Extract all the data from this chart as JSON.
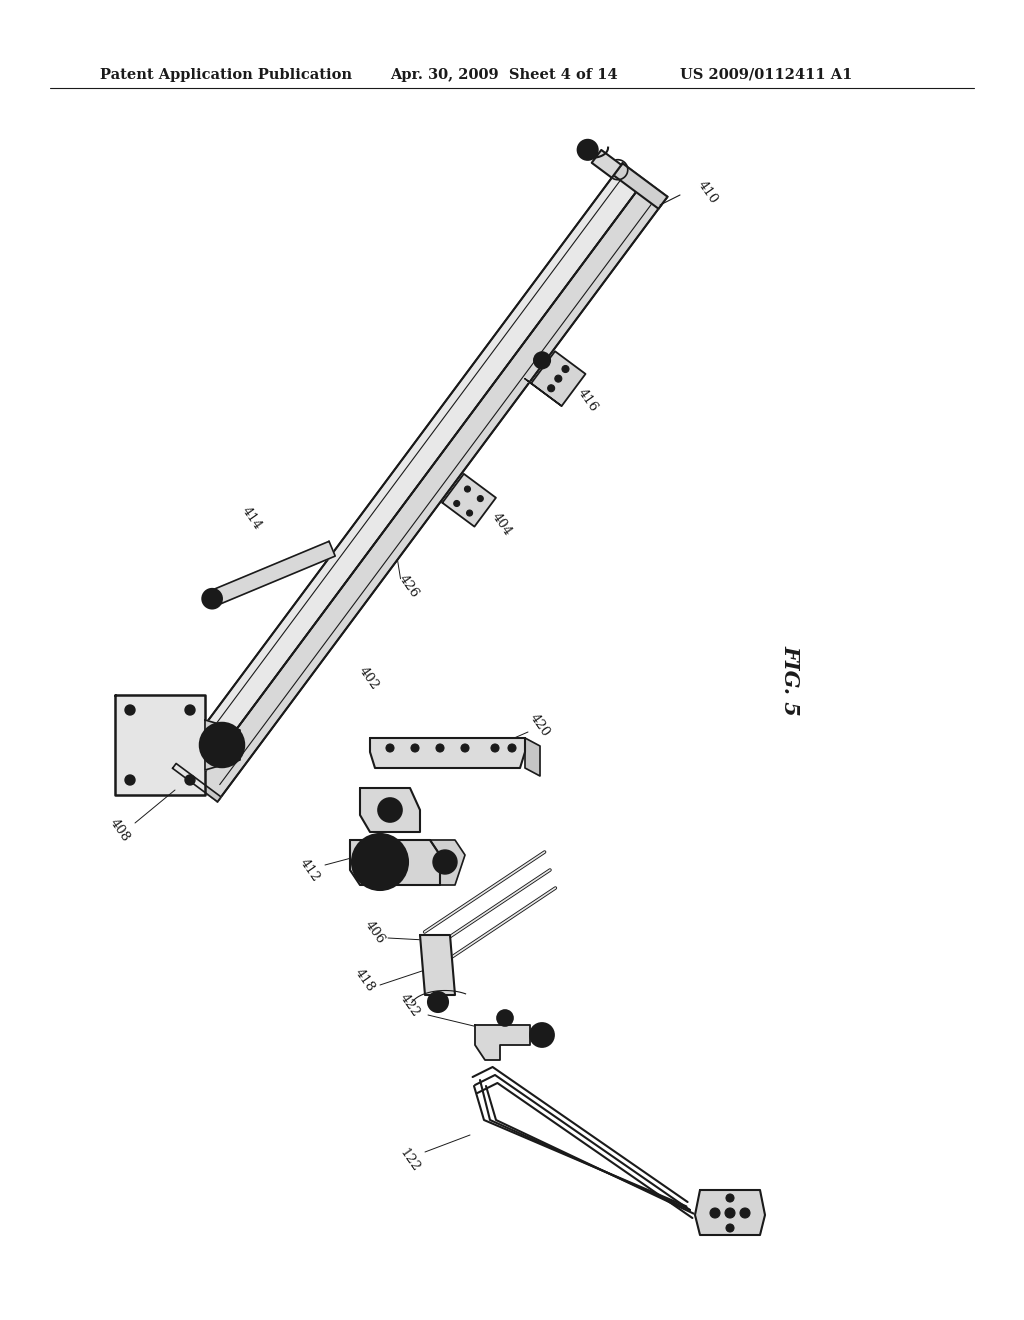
{
  "header_left": "Patent Application Publication",
  "header_center": "Apr. 30, 2009  Sheet 4 of 14",
  "header_right": "US 2009/0112411 A1",
  "fig_label": "FIG. 5",
  "background_color": "#ffffff",
  "line_color": "#1a1a1a",
  "header_fontsize": 10.5,
  "label_fontsize": 9.5,
  "fig_label_fontsize": 15
}
